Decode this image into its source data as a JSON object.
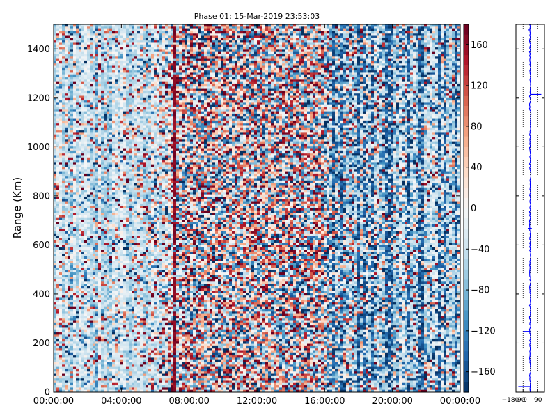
{
  "chart_data": [
    {
      "type": "heatmap",
      "title": "Phase 01: 15-Mar-2019 23:53:03",
      "xlabel": "",
      "ylabel": "Range (Km)",
      "x_tick_labels": [
        "00:00:00",
        "04:00:00",
        "08:00:00",
        "12:00:00",
        "16:00:00",
        "20:00:00",
        "00:00:00"
      ],
      "x_tick_hours": [
        0,
        4,
        8,
        12,
        16,
        20,
        24
      ],
      "xlim_hours": [
        0,
        24
      ],
      "ylim": [
        0,
        1500
      ],
      "y_ticks": [
        0,
        200,
        400,
        600,
        800,
        1000,
        1200,
        1400
      ],
      "colorbar": {
        "ticks": [
          -160,
          -120,
          -80,
          -40,
          0,
          40,
          80,
          120,
          160
        ],
        "range": [
          -180,
          180
        ],
        "colormap": "RdBu_r",
        "colors": [
          "#053061",
          "#2166ac",
          "#4393c3",
          "#92c5de",
          "#d1e5f0",
          "#f7f7f7",
          "#fddbc7",
          "#f4a582",
          "#d6604d",
          "#b2182b",
          "#67001f"
        ]
      },
      "column_noise_hours": [
        [
          0,
          0.35
        ],
        [
          2,
          0.3
        ],
        [
          4,
          0.3
        ],
        [
          6,
          0.45
        ],
        [
          7,
          0.8
        ],
        [
          8,
          1.0
        ],
        [
          12,
          1.0
        ],
        [
          16,
          1.0
        ],
        [
          17,
          0.9
        ],
        [
          18,
          0.75
        ],
        [
          20,
          0.7
        ],
        [
          22,
          0.6
        ],
        [
          24,
          0.6
        ]
      ],
      "background_phase_deg": -40
    },
    {
      "type": "line",
      "xlim": [
        -180,
        180
      ],
      "x_tick_labels": [
        "−180",
        "−90",
        "0",
        "90"
      ],
      "x_ticks": [
        -180,
        -90,
        0,
        90
      ],
      "ylim": [
        0,
        1500
      ],
      "y_ticks": [
        0,
        200,
        400,
        600,
        800,
        1000,
        1200,
        1400
      ],
      "grid": "x-dotted",
      "line_color": "#0000ff",
      "profile_center_deg": 0,
      "spikes": [
        {
          "range_km": 20,
          "phase_deg": -150
        },
        {
          "range_km": 245,
          "phase_deg": -90
        },
        {
          "range_km": 670,
          "phase_deg": -25
        },
        {
          "range_km": 670,
          "phase_deg": 20
        },
        {
          "range_km": 1218,
          "phase_deg": 140
        },
        {
          "range_km": 1480,
          "phase_deg": -30
        }
      ]
    }
  ]
}
